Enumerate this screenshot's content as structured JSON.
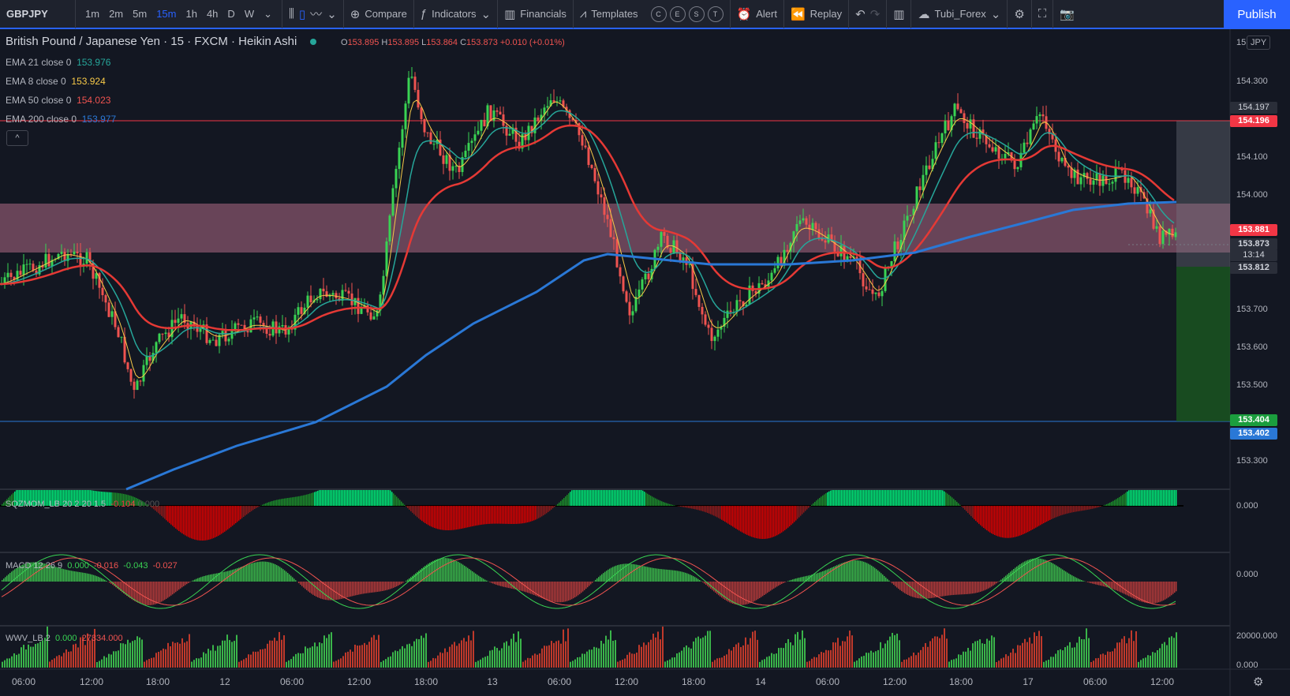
{
  "toolbar": {
    "symbol": "GBPJPY",
    "intervals": [
      "1m",
      "2m",
      "5m",
      "15m",
      "1h",
      "4h",
      "D",
      "W"
    ],
    "active_interval": "15m",
    "compare": "Compare",
    "indicators": "Indicators",
    "financials": "Financials",
    "templates": "Templates",
    "event_circles": [
      "C",
      "E",
      "S",
      "T"
    ],
    "alert": "Alert",
    "replay": "Replay",
    "account": "Tubi_Forex",
    "publish": "Publish"
  },
  "legend": {
    "title": "British Pound / Japanese Yen · 15 · FXCM · Heikin Ashi",
    "ohlc": {
      "o": "153.895",
      "h": "153.895",
      "l": "153.864",
      "c": "153.873",
      "chg": "+0.010 (+0.01%)"
    },
    "emas": [
      {
        "label": "EMA 21 close 0",
        "value": "153.976",
        "color": "#26a69a"
      },
      {
        "label": "EMA 8 close 0",
        "value": "153.924",
        "color": "#f7c948"
      },
      {
        "label": "EMA 50 close 0",
        "value": "154.023",
        "color": "#ef5350"
      },
      {
        "label": "EMA 200 close 0",
        "value": "153.977",
        "color": "#2a78d6"
      }
    ]
  },
  "panes": {
    "sqzmom": {
      "label": "SQZMOM_LB 20 2 20 1.5",
      "value": "-0.104",
      "value2": "0.000"
    },
    "macd": {
      "label": "MACD 12 26 9",
      "values": [
        "0.000",
        "-0.016",
        "-0.043",
        "-0.027"
      ]
    },
    "wwv": {
      "label": "WWV_LB 2",
      "values": [
        "0.000",
        "27834.000"
      ]
    }
  },
  "price_axis": {
    "currency": "JPY",
    "top_label": "15",
    "ticks": [
      "154.300",
      "154.100",
      "154.000",
      "153.700",
      "153.600",
      "153.500",
      "153.300"
    ],
    "tags": {
      "t1": "154.197",
      "t2": "154.196",
      "t3": "153.881",
      "t4": "153.873",
      "countdown": "13:14",
      "t5": "153.812",
      "t6": "153.404",
      "t7": "153.402"
    },
    "sqz_zero": "0.000",
    "macd_zero": "0.000",
    "wwv_ticks": [
      "20000.000",
      "0.000"
    ]
  },
  "time_axis": [
    "06:00",
    "12:00",
    "18:00",
    "12",
    "06:00",
    "12:00",
    "18:00",
    "13",
    "06:00",
    "12:00",
    "18:00",
    "14",
    "06:00",
    "12:00",
    "18:00",
    "17",
    "06:00",
    "12:00"
  ],
  "colors": {
    "up": "#26a69a",
    "candle_up": "#39d353",
    "candle_down": "#ef5350",
    "zone": "#f48fb1",
    "tag_red": "#f23645",
    "tag_green": "#1b9e3e",
    "tag_blue": "#2a78d6"
  }
}
